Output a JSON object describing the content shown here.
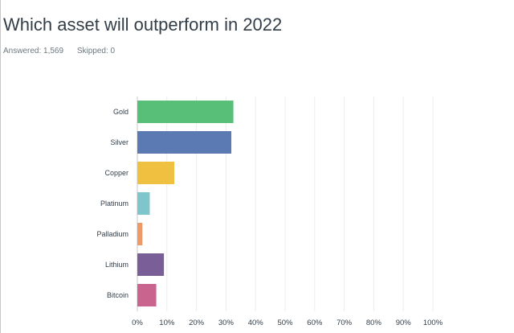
{
  "question": {
    "title": "Which asset will outperform in 2022"
  },
  "stats": {
    "answered_label": "Answered:",
    "answered_value": "1,569",
    "skipped_label": "Skipped:",
    "skipped_value": "0"
  },
  "chart_data": {
    "type": "bar",
    "orientation": "horizontal",
    "categories": [
      "Gold",
      "Silver",
      "Copper",
      "Platinum",
      "Palladium",
      "Lithium",
      "Bitcoin"
    ],
    "values": [
      32.5,
      31.8,
      12.5,
      4.2,
      1.7,
      9.0,
      6.4
    ],
    "colors": [
      "#57bf78",
      "#5b7ab3",
      "#f0c040",
      "#7ec6cc",
      "#ee9a66",
      "#7a5e97",
      "#c9648e"
    ],
    "xlim": [
      0,
      100
    ],
    "xticks": [
      "0%",
      "10%",
      "20%",
      "30%",
      "40%",
      "50%",
      "60%",
      "70%",
      "80%",
      "90%",
      "100%"
    ],
    "grid": true
  }
}
